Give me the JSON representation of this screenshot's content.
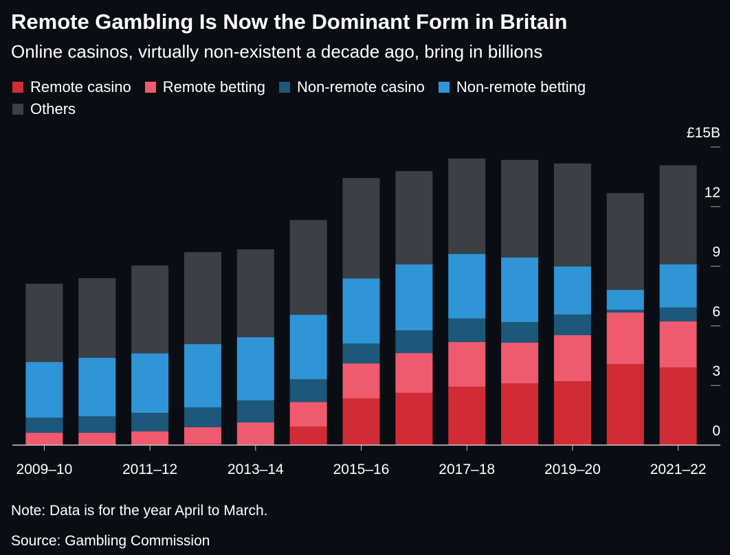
{
  "chart_data": {
    "type": "stacked-bar",
    "title": "Remote Gambling Is Now the Dominant Form in Britain",
    "subtitle": "Online casinos, virtually non-existent a decade ago, bring in billions",
    "categories": [
      "2009–10",
      null,
      "2011–12",
      null,
      "2013–14",
      null,
      "2015–16",
      null,
      "2017–18",
      null,
      "2019–20",
      null,
      "2021–22"
    ],
    "series": [
      {
        "name": "Remote casino",
        "color": "#d12c36",
        "values": [
          0,
          0,
          0,
          0.07,
          0.03,
          0.93,
          2.35,
          2.63,
          2.94,
          3.11,
          3.21,
          4.08,
          3.91
        ]
      },
      {
        "name": "Remote betting",
        "color": "#ef5a6f",
        "values": [
          0.62,
          0.62,
          0.69,
          0.83,
          1.11,
          1.24,
          1.76,
          2.0,
          2.25,
          2.04,
          2.32,
          2.59,
          2.32
        ]
      },
      {
        "name": "Non-remote casino",
        "color": "#1d577a",
        "values": [
          0.76,
          0.83,
          0.93,
          1.0,
          1.11,
          1.14,
          1.0,
          1.14,
          1.18,
          1.04,
          1.04,
          0.14,
          0.69
        ]
      },
      {
        "name": "Non-remote betting",
        "color": "#2f95d6",
        "values": [
          2.8,
          2.94,
          3.0,
          3.18,
          3.18,
          3.25,
          3.28,
          3.32,
          3.25,
          3.25,
          2.42,
          1.0,
          2.18
        ]
      },
      {
        "name": "Others",
        "color": "#3b3f46",
        "values": [
          3.94,
          4.01,
          4.42,
          4.63,
          4.42,
          4.77,
          5.05,
          4.7,
          4.8,
          4.91,
          5.18,
          4.87,
          4.98
        ]
      }
    ],
    "ylim": [
      0,
      15
    ],
    "yticks": [
      0,
      3,
      6,
      9,
      12,
      {
        "value": 15,
        "label": "£15B"
      }
    ],
    "grid": false,
    "note": "Note: Data is for the year April to March.",
    "source": "Source: Gambling Commission"
  }
}
